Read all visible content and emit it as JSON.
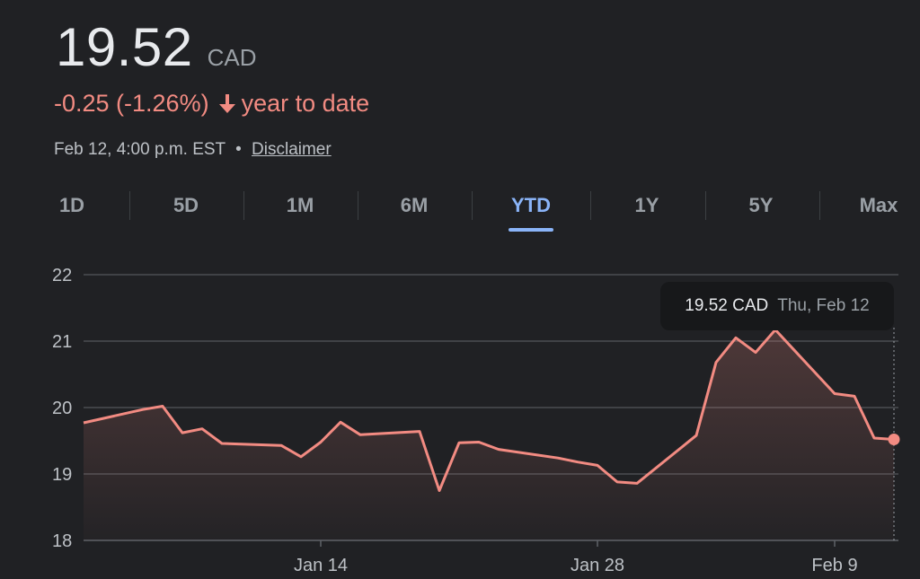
{
  "quote": {
    "price": "19.52",
    "currency": "CAD",
    "change": "-0.25 (-1.26%)",
    "period_label": "year to date",
    "timestamp": "Feb 12, 4:00 p.m. EST",
    "separator": "•",
    "disclaimer": "Disclaimer",
    "negative_color": "#f28b82",
    "accent_color": "#8ab4f8"
  },
  "tabs": [
    {
      "label": "1D",
      "active": false
    },
    {
      "label": "5D",
      "active": false
    },
    {
      "label": "1M",
      "active": false
    },
    {
      "label": "6M",
      "active": false
    },
    {
      "label": "YTD",
      "active": true
    },
    {
      "label": "1Y",
      "active": false
    },
    {
      "label": "5Y",
      "active": false
    },
    {
      "label": "Max",
      "active": false
    }
  ],
  "tooltip": {
    "price": "19.52 CAD",
    "date": "Thu, Feb 12"
  },
  "chart_data": {
    "type": "area",
    "x": [
      "2026-01-02",
      "2026-01-05",
      "2026-01-06",
      "2026-01-07",
      "2026-01-08",
      "2026-01-09",
      "2026-01-12",
      "2026-01-13",
      "2026-01-14",
      "2026-01-15",
      "2026-01-16",
      "2026-01-19",
      "2026-01-20",
      "2026-01-21",
      "2026-01-22",
      "2026-01-23",
      "2026-01-26",
      "2026-01-27",
      "2026-01-28",
      "2026-01-29",
      "2026-01-30",
      "2026-02-02",
      "2026-02-03",
      "2026-02-04",
      "2026-02-05",
      "2026-02-06",
      "2026-02-09",
      "2026-02-10",
      "2026-02-11",
      "2026-02-12"
    ],
    "values": [
      19.77,
      19.97,
      20.02,
      19.62,
      19.68,
      19.46,
      19.43,
      19.26,
      19.48,
      19.78,
      19.59,
      19.64,
      18.75,
      19.47,
      19.48,
      19.37,
      19.24,
      19.18,
      19.13,
      18.88,
      18.86,
      19.58,
      20.68,
      21.05,
      20.83,
      21.17,
      20.21,
      20.17,
      19.54,
      19.52
    ],
    "xticks": [
      {
        "label": "Jan 14",
        "date": "2026-01-14"
      },
      {
        "label": "Jan 28",
        "date": "2026-01-28"
      },
      {
        "label": "Feb 9",
        "date": "2026-02-09"
      }
    ],
    "yticks": [
      22,
      21,
      20,
      19,
      18
    ],
    "ylim": [
      18,
      22
    ],
    "grid": true,
    "line_color": "#f28b82"
  }
}
